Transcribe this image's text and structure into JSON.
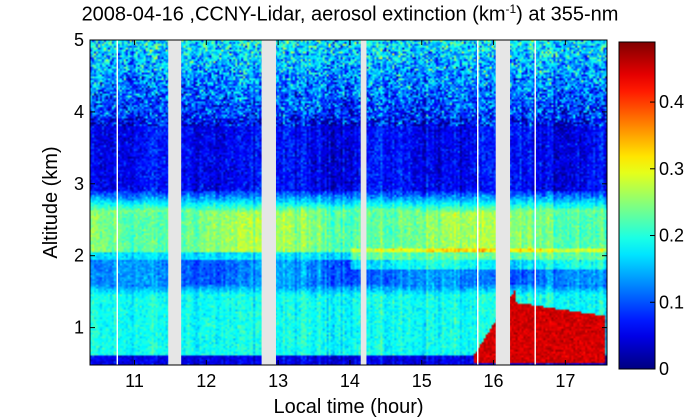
{
  "chart_data": {
    "type": "heatmap",
    "title": {
      "prefix": "2008-04-16 ,CCNY-Lidar, aerosol extinction (km",
      "exponent": "-1",
      "suffix": ") at 355-nm"
    },
    "xlabel": "Local time (hour)",
    "ylabel": "Altitude (km)",
    "x_ticks": [
      "11",
      "12",
      "13",
      "14",
      "15",
      "16",
      "17"
    ],
    "x_tick_values": [
      11,
      12,
      13,
      14,
      15,
      16,
      17
    ],
    "y_ticks": [
      "1",
      "2",
      "3",
      "4",
      "5"
    ],
    "y_tick_values": [
      1,
      2,
      3,
      4,
      5
    ],
    "xlim": [
      10.38,
      17.58
    ],
    "ylim": [
      0.48,
      5.0
    ],
    "colorbar": {
      "label_ticks": [
        "0",
        "0.1",
        "0.2",
        "0.3",
        "0.4"
      ],
      "tick_values": [
        0,
        0.1,
        0.2,
        0.3,
        0.4
      ],
      "range": [
        0,
        0.49
      ],
      "colormap": "jet"
    },
    "data_gaps_hours": [
      [
        10.75,
        10.77
      ],
      [
        11.47,
        11.65
      ],
      [
        12.77,
        12.97
      ],
      [
        14.15,
        14.23
      ],
      [
        15.77,
        15.79
      ],
      [
        16.03,
        16.23
      ],
      [
        16.57,
        16.59
      ]
    ],
    "layers": [
      {
        "name": "near-surface low band",
        "altitude_km": [
          0.48,
          0.62
        ],
        "extinction": 0.05
      },
      {
        "name": "boundary layer",
        "altitude_km": [
          0.62,
          1.45
        ],
        "extinction": 0.2
      },
      {
        "name": "lower minimum",
        "altitude_km": [
          1.6,
          1.95
        ],
        "extinction": 0.13
      },
      {
        "name": "aerosol layer",
        "altitude_km": [
          2.0,
          2.6
        ],
        "extinction": 0.25
      },
      {
        "name": "clean free troposphere",
        "altitude_km": [
          2.9,
          3.9
        ],
        "extinction": 0.06
      },
      {
        "name": "noisy upper region",
        "altitude_km": [
          4.0,
          5.0
        ],
        "extinction": 0.15
      }
    ],
    "events": [
      {
        "name": "late afternoon aerosol plume",
        "time_hours": [
          15.72,
          17.55
        ],
        "altitude_km": [
          0.5,
          1.5
        ],
        "extinction": 0.45
      }
    ]
  },
  "colors": {
    "jet": [
      "#00008f",
      "#0000ff",
      "#00ffff",
      "#ffff00",
      "#ff0000",
      "#800000"
    ],
    "gap": "#e6e6e6",
    "axis": "#000000"
  }
}
